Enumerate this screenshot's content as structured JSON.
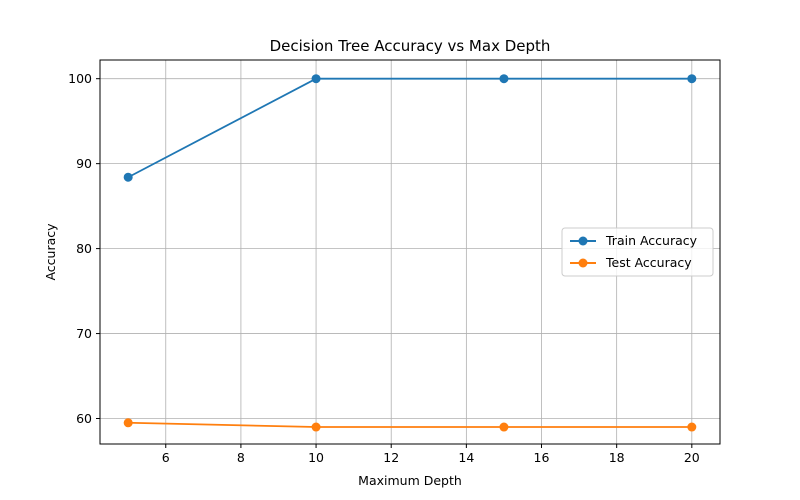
{
  "chart_data": {
    "type": "line",
    "title": "Decision Tree Accuracy vs Max Depth",
    "xlabel": "Maximum Depth",
    "ylabel": "Accuracy",
    "x": [
      5,
      10,
      15,
      20
    ],
    "xlim": [
      4.25,
      20.75
    ],
    "ylim": [
      57.0,
      102.2
    ],
    "xticks": [
      6,
      8,
      10,
      12,
      14,
      16,
      18,
      20
    ],
    "yticks": [
      60,
      70,
      80,
      90,
      100
    ],
    "grid": true,
    "legend_position": "center-right",
    "series": [
      {
        "name": "Train Accuracy",
        "color": "#1f77b4",
        "values": [
          88.4,
          100.0,
          100.0,
          100.0
        ]
      },
      {
        "name": "Test Accuracy",
        "color": "#ff7f0e",
        "values": [
          59.5,
          59.0,
          59.0,
          59.0
        ]
      }
    ]
  }
}
